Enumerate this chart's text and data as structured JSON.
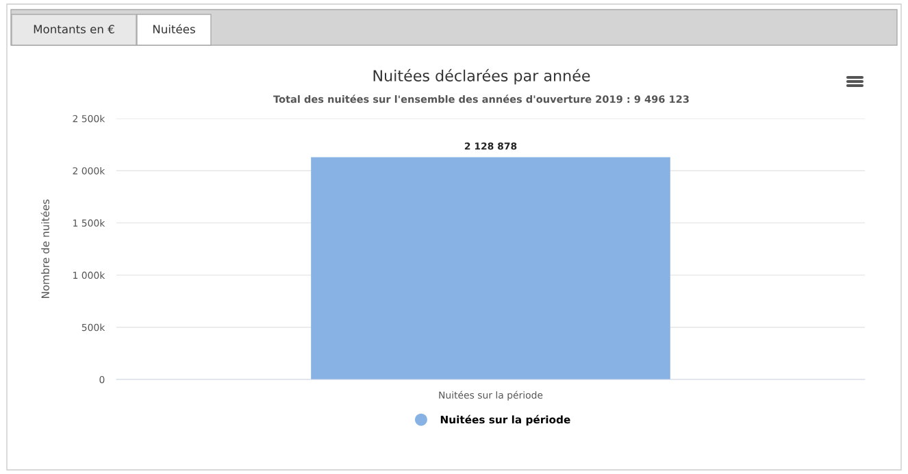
{
  "chart_data": {
    "type": "bar",
    "title": "Nuitées déclarées par année",
    "subtitle": "Total des nuitées sur l'ensemble des années d'ouverture 2019 : 9 496 123",
    "ylabel": "Nombre de nuitées",
    "categories": [
      "Nuitées sur la période"
    ],
    "series": [
      {
        "name": "Nuitées sur la période",
        "color": "#88b2e4",
        "values": [
          2128878
        ],
        "value_labels": [
          "2 128 878"
        ]
      }
    ],
    "ylim": [
      0,
      2500000
    ],
    "yticks": [
      {
        "value": 0,
        "label": "0"
      },
      {
        "value": 500000,
        "label": "500k"
      },
      {
        "value": 1000000,
        "label": "1 000k"
      },
      {
        "value": 1500000,
        "label": "1 500k"
      },
      {
        "value": 2000000,
        "label": "2 000k"
      },
      {
        "value": 2500000,
        "label": "2 500k"
      }
    ],
    "grid": "y",
    "legend": "bottom",
    "annotations": [
      "Montants en €",
      "Nuitées"
    ]
  }
}
